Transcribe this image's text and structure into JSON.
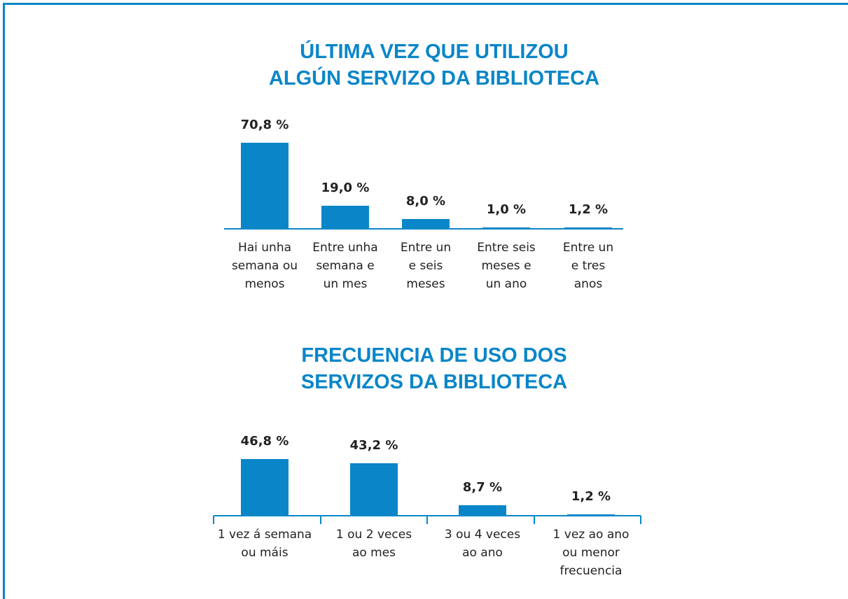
{
  "chart_data": [
    {
      "type": "bar",
      "title": "ÚLTIMA VEZ QUE UTILIZOU\nALGÚN SERVIZO DA BIBLIOTECA",
      "categories": [
        "Hai unha\nsemana ou\nmenos",
        "Entre unha\nsemana e\nun mes",
        "Entre un\ne seis\nmeses",
        "Entre seis\nmeses e\nun ano",
        "Entre un\ne tres\nanos"
      ],
      "values": [
        70.8,
        19.0,
        8.0,
        1.0,
        1.2
      ],
      "value_labels": [
        "70,8 %",
        "19,0 %",
        "8,0 %",
        "1,0 %",
        "1,2 %"
      ],
      "color": "#0a86c8",
      "ylim": [
        0,
        100
      ]
    },
    {
      "type": "bar",
      "title": "FRECUENCIA DE USO DOS\nSERVIZOS DA BIBLIOTECA",
      "categories": [
        "1 vez á semana\nou máis",
        "1 ou 2 veces\nao mes",
        "3 ou 4 veces\nao ano",
        "1 vez ao ano\nou menor\nfrecuencia"
      ],
      "values": [
        46.8,
        43.2,
        8.7,
        1.2
      ],
      "value_labels": [
        "46,8 %",
        "43,2 %",
        "8,7 %",
        "1,2 %"
      ],
      "color": "#0a86c8",
      "ylim": [
        0,
        100
      ]
    }
  ]
}
